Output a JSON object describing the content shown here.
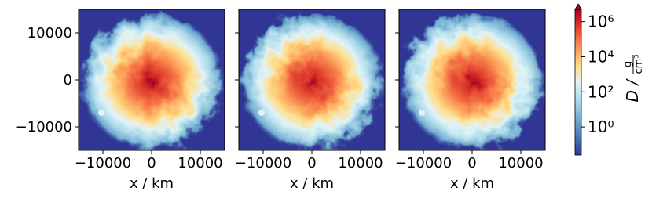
{
  "chart_data": [
    {
      "type": "image",
      "xlim": [
        -15000,
        15000
      ],
      "ylim": [
        -15000,
        15000
      ],
      "xticks": [
        {
          "value": -10000,
          "label": "−10000"
        },
        0,
        10000
      ],
      "yticks": [
        {
          "value": -10000,
          "label": "−10000"
        },
        0,
        10000
      ],
      "xlabel": "x / km"
    },
    {
      "type": "image",
      "xlim": [
        -15000,
        15000
      ],
      "ylim": [
        -15000,
        15000
      ],
      "xticks": [
        {
          "value": -10000,
          "label": "−10000"
        },
        0,
        10000
      ],
      "xlabel": "x / km"
    },
    {
      "type": "image",
      "xlim": [
        -15000,
        15000
      ],
      "ylim": [
        -15000,
        15000
      ],
      "xticks": [
        {
          "value": -10000,
          "label": "−10000"
        },
        0,
        10000
      ],
      "xlabel": "x / km"
    },
    {
      "type": "colorbar",
      "log_scale": true,
      "ylim": [
        0.025,
        5000000
      ],
      "yticks": [
        {
          "value": 1,
          "label": "10⁰"
        },
        {
          "value": 100,
          "label": "10²"
        },
        {
          "value": 10000,
          "label": "10⁴"
        },
        {
          "value": 1000000,
          "label": "10⁶"
        }
      ],
      "label": {
        "symbol": "D /",
        "numerator": "g",
        "denominator": "cm³"
      }
    }
  ]
}
